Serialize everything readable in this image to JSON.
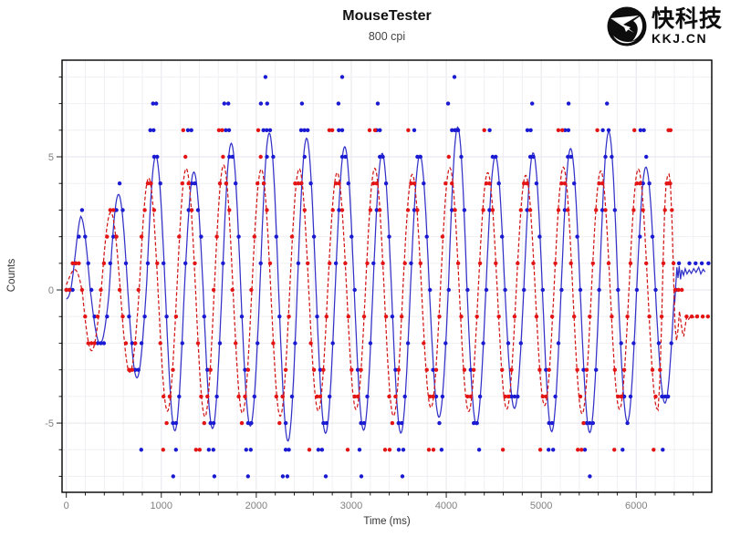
{
  "logo": {
    "cn": "快科技",
    "domain": "KKJ.CN"
  },
  "chart_data": {
    "type": "scatter-line",
    "title": "MouseTester",
    "subtitle": "800 cpi",
    "xlabel": "Time (ms)",
    "ylabel": "Counts",
    "xlim": [
      -45,
      6795
    ],
    "ylim": [
      -7.6,
      8.63
    ],
    "x_major_ticks": [
      0,
      1000,
      2000,
      3000,
      4000,
      5000,
      6000
    ],
    "x_major_step": 1000,
    "x_minor_step": 200,
    "y_major_ticks": [
      -5,
      0,
      5
    ],
    "y_minor_step": 1,
    "grid": true,
    "legend": "none",
    "dot_interval_ms": 33,
    "colors": {
      "grid_minor": "#f0f0f4",
      "grid_major": "#e6e6ec",
      "border": "#000000",
      "tick": "#222222",
      "tick_label": "#808080",
      "axis_title": "#333333",
      "title": "#111111",
      "subtitle": "#444444",
      "logo_black": "#0d0d0d"
    },
    "series": [
      {
        "id": "blue",
        "line_color": "#3232c8",
        "dot_color": "#1a1ad2",
        "line_style": "solid",
        "model": {
          "period": 397,
          "first_peak_ms": 150,
          "start_ms": 0,
          "end_ms": 6400,
          "peak_amps": [
            2.8,
            3.5,
            5.2,
            4.3,
            5.5,
            6.0,
            5.6,
            5.4,
            5.1,
            5.2,
            5.9,
            5.2,
            5.1,
            5.3,
            5.9,
            4.7
          ],
          "trough_amps": [
            2.0,
            3.3,
            5.4,
            5.0,
            5.3,
            5.6,
            5.4,
            5.2,
            5.5,
            4.7,
            5.0,
            4.6,
            5.2,
            5.4,
            4.9,
            4.4
          ],
          "wobble": [
            [
              0.13,
              0.023,
              1.0
            ],
            [
              0.09,
              0.011,
              0.0
            ]
          ],
          "ramp": {
            "until_ms": 150,
            "base": 0.25
          }
        },
        "extra_dots": [
          [
            884,
            6
          ],
          [
            919,
            6
          ],
          [
            1281,
            6
          ],
          [
            1316,
            6
          ],
          [
            1678,
            6
          ],
          [
            1713,
            6
          ],
          [
            2075,
            6
          ],
          [
            2110,
            6
          ],
          [
            2472,
            6
          ],
          [
            2507,
            6
          ],
          [
            2869,
            6
          ],
          [
            2904,
            6
          ],
          [
            3266,
            6
          ],
          [
            3301,
            6
          ],
          [
            3663,
            6
          ],
          [
            4060,
            6
          ],
          [
            4095,
            6
          ],
          [
            4457,
            6
          ],
          [
            4854,
            6
          ],
          [
            4889,
            6
          ],
          [
            5251,
            6
          ],
          [
            5286,
            6
          ],
          [
            5648,
            6
          ],
          [
            6045,
            6
          ],
          [
            6080,
            6
          ],
          [
            913,
            7
          ],
          [
            946,
            7
          ],
          [
            1663,
            7
          ],
          [
            1705,
            7
          ],
          [
            2048,
            7
          ],
          [
            2115,
            7
          ],
          [
            2481,
            7
          ],
          [
            2865,
            7
          ],
          [
            3279,
            7
          ],
          [
            4020,
            7
          ],
          [
            4904,
            7
          ],
          [
            5288,
            7
          ],
          [
            5692,
            7
          ],
          [
            2096,
            8
          ],
          [
            2904,
            8
          ],
          [
            4086,
            8
          ],
          [
            789,
            -6
          ],
          [
            1154,
            -6
          ],
          [
            1500,
            -6
          ],
          [
            1548,
            -6
          ],
          [
            1894,
            -6
          ],
          [
            1942,
            -6
          ],
          [
            2310,
            -6
          ],
          [
            2654,
            -6
          ],
          [
            2692,
            -6
          ],
          [
            3087,
            -6
          ],
          [
            3500,
            -6
          ],
          [
            3548,
            -6
          ],
          [
            3950,
            -6
          ],
          [
            4346,
            -6
          ],
          [
            5077,
            -6
          ],
          [
            5125,
            -6
          ],
          [
            5460,
            -6
          ],
          [
            5856,
            -6
          ],
          [
            6279,
            -6
          ],
          [
            1125,
            -7
          ],
          [
            1558,
            -7
          ],
          [
            1913,
            -7
          ],
          [
            2279,
            -7
          ],
          [
            2327,
            -7
          ],
          [
            2731,
            -7
          ],
          [
            3106,
            -7
          ],
          [
            3538,
            -7
          ],
          [
            5512,
            -7
          ]
        ],
        "tail_line": [
          [
            6405,
            -0.5
          ],
          [
            6418,
            0.3
          ],
          [
            6428,
            0.85
          ],
          [
            6440,
            0.45
          ],
          [
            6452,
            0.9
          ],
          [
            6466,
            0.4
          ],
          [
            6480,
            0.75
          ],
          [
            6498,
            0.55
          ],
          [
            6515,
            0.8
          ],
          [
            6535,
            0.6
          ],
          [
            6558,
            0.75
          ],
          [
            6580,
            0.62
          ],
          [
            6605,
            0.8
          ],
          [
            6630,
            0.66
          ],
          [
            6658,
            0.85
          ],
          [
            6680,
            0.6
          ],
          [
            6705,
            0.78
          ],
          [
            6725,
            0.68
          ]
        ],
        "tail_dots": [
          [
            6420,
            0
          ],
          [
            6450,
            1
          ],
          [
            6560,
            1
          ],
          [
            6625,
            1
          ],
          [
            6690,
            1
          ],
          [
            6760,
            1
          ]
        ]
      },
      {
        "id": "red",
        "line_color": "#d21616",
        "dot_color": "#e41414",
        "line_style": "dashed",
        "model": {
          "period": 397,
          "first_peak_ms": 70,
          "start_ms": 0,
          "end_ms": 6230,
          "peak_amps": [
            1.1,
            3.0,
            4.3,
            4.55,
            4.6,
            4.5,
            4.6,
            4.45,
            4.55,
            4.3,
            4.6,
            4.45,
            4.3,
            4.55,
            4.45,
            4.6
          ],
          "trough_amps": [
            2.3,
            3.2,
            4.6,
            4.7,
            4.55,
            4.75,
            4.6,
            4.5,
            4.7,
            4.4,
            4.6,
            4.5,
            4.3,
            4.6,
            4.5,
            4.55
          ],
          "wobble": [
            [
              0.12,
              0.019,
              2.0
            ],
            [
              0.08,
              0.013,
              0.7
            ]
          ],
          "ramp": {
            "until_ms": 150,
            "base": 0.3
          }
        },
        "extra_dots": [
          [
            1231,
            6
          ],
          [
            1606,
            6
          ],
          [
            1640,
            6
          ],
          [
            2020,
            6
          ],
          [
            2769,
            6
          ],
          [
            2800,
            6
          ],
          [
            3192,
            6
          ],
          [
            3250,
            6
          ],
          [
            3600,
            6
          ],
          [
            4400,
            6
          ],
          [
            5180,
            6
          ],
          [
            5221,
            6
          ],
          [
            5590,
            6
          ],
          [
            5980,
            6
          ],
          [
            6340,
            6
          ],
          [
            6362,
            6
          ],
          [
            1019,
            -6
          ],
          [
            1365,
            -6
          ],
          [
            1404,
            -6
          ],
          [
            2558,
            -6
          ],
          [
            2962,
            -6
          ],
          [
            3356,
            -6
          ],
          [
            3404,
            -6
          ],
          [
            3817,
            -6
          ],
          [
            3865,
            -6
          ],
          [
            4596,
            -6
          ],
          [
            4990,
            -6
          ],
          [
            5385,
            -6
          ],
          [
            5423,
            -6
          ],
          [
            5769,
            -6
          ],
          [
            6183,
            -6
          ]
        ],
        "tail_line": [
          [
            6230,
            -4.5
          ],
          [
            6248,
            -3.4
          ],
          [
            6266,
            -1.4
          ],
          [
            6284,
            1.2
          ],
          [
            6300,
            3.1
          ],
          [
            6315,
            4.0
          ],
          [
            6330,
            4.3
          ],
          [
            6345,
            4.35
          ],
          [
            6360,
            4.0
          ],
          [
            6376,
            2.6
          ],
          [
            6392,
            0.6
          ],
          [
            6408,
            -1.3
          ],
          [
            6424,
            -1.9
          ],
          [
            6440,
            -1.5
          ],
          [
            6455,
            -0.8
          ],
          [
            6470,
            -1.2
          ],
          [
            6487,
            -1.6
          ],
          [
            6500,
            -1.75
          ],
          [
            6515,
            -1.35
          ],
          [
            6532,
            -1.0
          ],
          [
            6552,
            -1.1
          ],
          [
            6580,
            -0.95
          ],
          [
            6615,
            -1.05
          ],
          [
            6650,
            -0.95
          ],
          [
            6690,
            -1.03
          ],
          [
            6730,
            -0.98
          ]
        ],
        "tail_dots": [
          [
            6250,
            -3
          ],
          [
            6268,
            -1
          ],
          [
            6286,
            1
          ],
          [
            6302,
            3
          ],
          [
            6320,
            4
          ],
          [
            6340,
            4
          ],
          [
            6358,
            4
          ],
          [
            6375,
            3
          ],
          [
            6392,
            1
          ],
          [
            6410,
            0
          ],
          [
            6445,
            0
          ],
          [
            6480,
            0
          ],
          [
            6530,
            -1
          ],
          [
            6585,
            -1
          ],
          [
            6640,
            -1
          ],
          [
            6700,
            -1
          ],
          [
            6755,
            -1
          ]
        ]
      }
    ]
  }
}
